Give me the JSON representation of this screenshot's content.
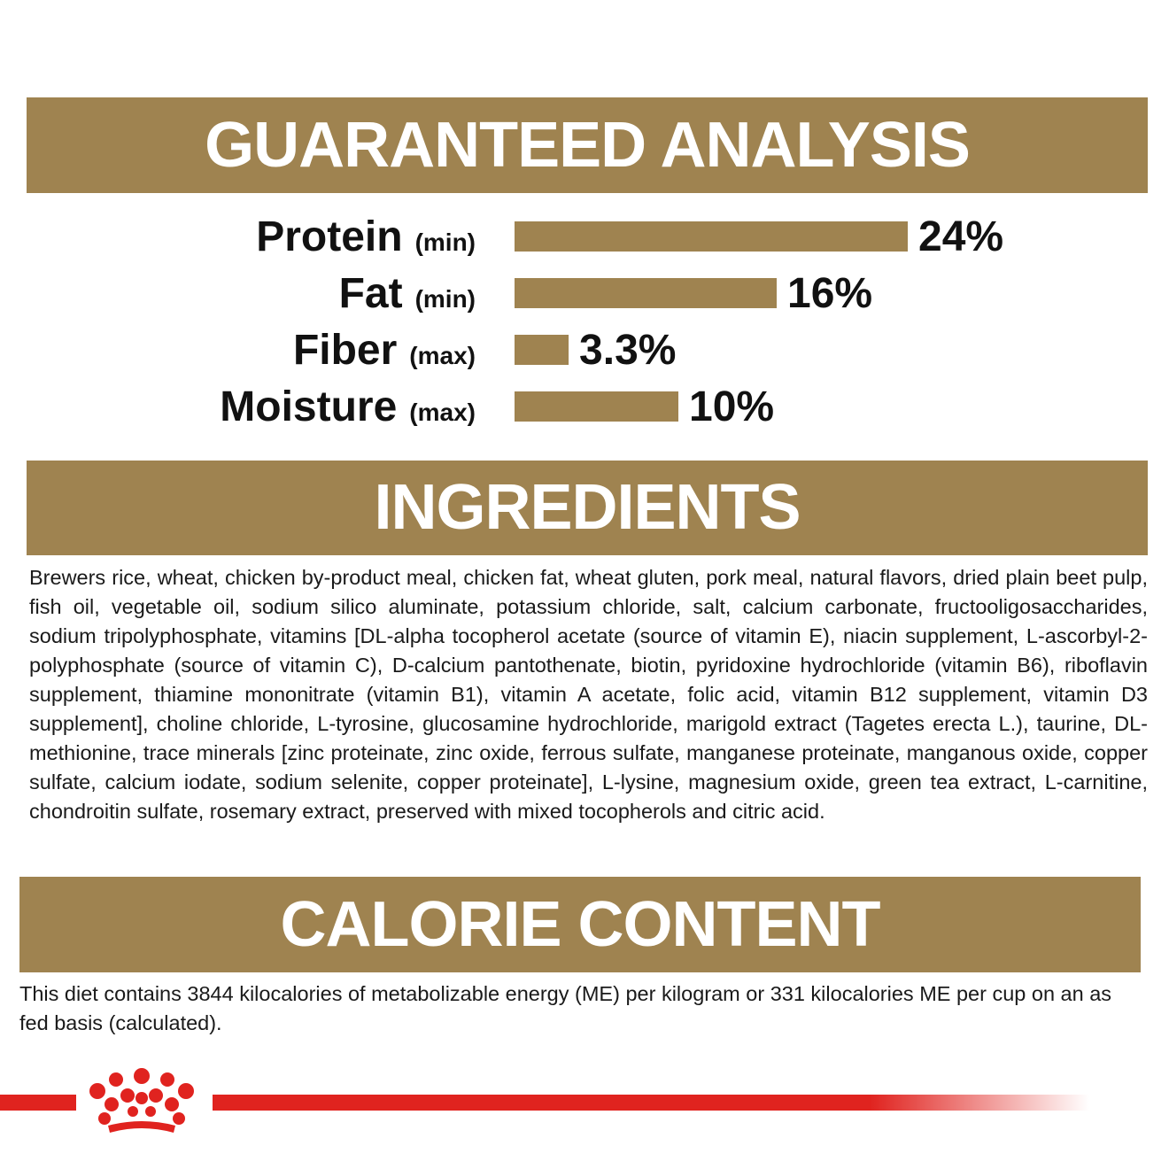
{
  "analysis": {
    "title": "GUARANTEED ANALYSIS",
    "rows": [
      {
        "name": "Protein",
        "qualifier": "(min)",
        "value": 24,
        "value_label": "24%"
      },
      {
        "name": "Fat",
        "qualifier": "(min)",
        "value": 16,
        "value_label": "16%"
      },
      {
        "name": "Fiber",
        "qualifier": "(max)",
        "value": 3.3,
        "value_label": "3.3%"
      },
      {
        "name": "Moisture",
        "qualifier": "(max)",
        "value": 10,
        "value_label": "10%"
      }
    ]
  },
  "ingredients": {
    "title": "INGREDIENTS",
    "text": "Brewers rice, wheat, chicken by-product meal, chicken fat, wheat gluten, pork meal, natural flavors, dried plain beet pulp, fish oil, vegetable oil, sodium silico aluminate, potassium chloride, salt, calcium carbonate, fructooligosaccharides, sodium tripolyphosphate, vitamins [DL-alpha tocopherol acetate (source of vitamin E), niacin supplement, L-ascorbyl-2-polyphosphate (source of vitamin C), D-calcium pantothenate, biotin, pyridoxine hydrochloride (vitamin B6), riboflavin supplement, thiamine mononitrate (vitamin B1), vitamin A acetate, folic acid, vitamin B12 supplement, vitamin D3 supplement], choline chloride, L-tyrosine, glucosamine hydrochloride, marigold extract (Tagetes erecta L.), taurine, DL-methionine, trace minerals [zinc proteinate, zinc oxide, ferrous sulfate, manganese proteinate, manganous oxide, copper sulfate, calcium iodate, sodium selenite, copper proteinate], L-lysine, magnesium oxide, green tea extract, L-carnitine, chondroitin sulfate, rosemary extract, preserved with mixed tocopherols and citric acid."
  },
  "calorie": {
    "title": "CALORIE CONTENT",
    "text": "This diet contains 3844 kilocalories of metabolizable energy (ME) per kilogram or 331 kilocalories ME per cup on an as fed basis (calculated)."
  }
}
